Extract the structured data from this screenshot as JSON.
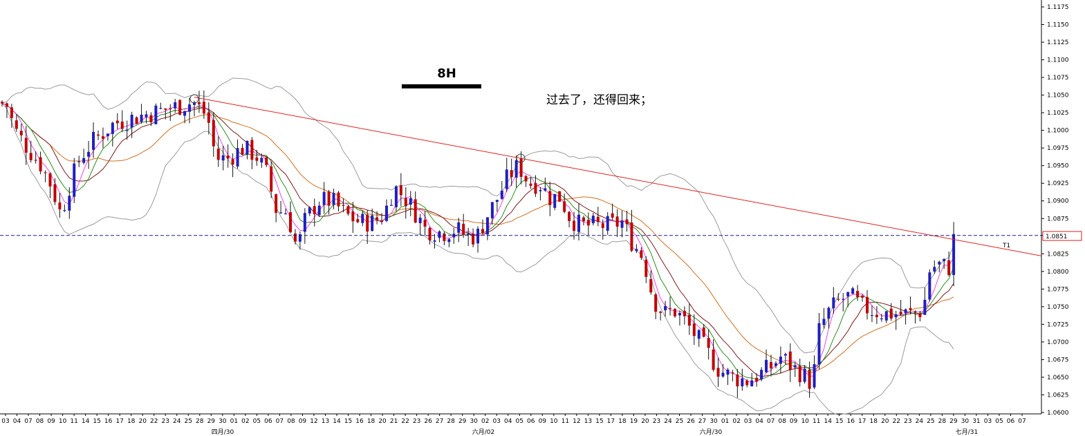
{
  "chart_data": {
    "type": "candlestick",
    "instrument_timeframe": "8H",
    "annotation": "过去了，还得回来；",
    "trendline_label": "T1",
    "current_price_label": "1.0851",
    "ylim": [
      1.06,
      1.1175
    ],
    "y_ticks": [
      "1.1175",
      "1.1150",
      "1.1125",
      "1.1100",
      "1.1075",
      "1.1050",
      "1.1025",
      "1.1000",
      "1.0975",
      "1.0950",
      "1.0925",
      "1.0900",
      "1.0875",
      "1.0851",
      "1.0825",
      "1.0800",
      "1.0775",
      "1.0750",
      "1.0725",
      "1.0700",
      "1.0675",
      "1.0650",
      "1.0625",
      "1.0600"
    ],
    "x_date_labels": [
      "03",
      "04",
      "07",
      "08",
      "09",
      "10",
      "11",
      "14",
      "15",
      "16",
      "17",
      "18",
      "20",
      "22",
      "23",
      "24",
      "25",
      "28",
      "29",
      "30",
      "01",
      "02",
      "05",
      "06",
      "07",
      "08",
      "09",
      "12",
      "13",
      "14",
      "15",
      "16",
      "18",
      "20",
      "21",
      "22",
      "23",
      "26",
      "27",
      "28",
      "29",
      "30",
      "02",
      "03",
      "04",
      "05",
      "06",
      "09",
      "10",
      "11",
      "12",
      "13",
      "15",
      "17",
      "18",
      "19",
      "20",
      "23",
      "24",
      "25",
      "26",
      "27",
      "30",
      "01",
      "02",
      "03",
      "04",
      "07",
      "08",
      "09",
      "10",
      "11",
      "14",
      "15",
      "16",
      "17",
      "18",
      "20",
      "22",
      "23",
      "24",
      "25",
      "28",
      "29",
      "30",
      "31",
      "03",
      "05",
      "06",
      "07"
    ],
    "x_month_labels": [
      "四月/30",
      "六月/02",
      "六月/30",
      "七月/31"
    ],
    "trendline": [
      [
        1.1047,
        1.0822
      ]
    ],
    "horizontal_line": 1.0851,
    "colors": {
      "bull": "#1f1fbf",
      "bear": "#c00000",
      "trendline": "#dd2222",
      "hline": "#1a1a80",
      "bollinger": "#9a9a9a",
      "ma_fast": "#ee44dd",
      "ma_mid": "#2e8b22",
      "ma_slow": "#7b1a1a",
      "ma_long": "#d07020"
    },
    "close_path": [
      [
        0,
        1.104
      ],
      [
        10,
        1.1035
      ],
      [
        22,
        1.1
      ],
      [
        40,
        1.0975
      ],
      [
        60,
        1.095
      ],
      [
        75,
        1.092
      ],
      [
        88,
        1.088
      ],
      [
        100,
        1.092
      ],
      [
        115,
        1.096
      ],
      [
        135,
        1.0985
      ],
      [
        165,
        1.101
      ],
      [
        200,
        1.102
      ],
      [
        240,
        1.103
      ],
      [
        280,
        1.104
      ],
      [
        300,
        1.102
      ],
      [
        312,
        1.096
      ],
      [
        330,
        1.096
      ],
      [
        350,
        1.0975
      ],
      [
        370,
        1.0965
      ],
      [
        385,
        1.094
      ],
      [
        400,
        1.0885
      ],
      [
        415,
        1.0885
      ],
      [
        430,
        1.083
      ],
      [
        440,
        1.087
      ],
      [
        460,
        1.09
      ],
      [
        480,
        1.09
      ],
      [
        500,
        1.088
      ],
      [
        520,
        1.087
      ],
      [
        540,
        1.087
      ],
      [
        555,
        1.088
      ],
      [
        570,
        1.092
      ],
      [
        585,
        1.0905
      ],
      [
        600,
        1.0885
      ],
      [
        615,
        1.086
      ],
      [
        640,
        1.0855
      ],
      [
        660,
        1.086
      ],
      [
        675,
        1.085
      ],
      [
        690,
        1.085
      ],
      [
        705,
        1.088
      ],
      [
        720,
        1.0905
      ],
      [
        735,
        1.0935
      ],
      [
        750,
        1.095
      ],
      [
        765,
        1.0925
      ],
      [
        780,
        1.0925
      ],
      [
        795,
        1.0905
      ],
      [
        810,
        1.0905
      ],
      [
        825,
        1.0875
      ],
      [
        840,
        1.0865
      ],
      [
        860,
        1.0865
      ],
      [
        880,
        1.0865
      ],
      [
        900,
        1.087
      ],
      [
        915,
        1.084
      ],
      [
        930,
        1.082
      ],
      [
        945,
        1.076
      ],
      [
        960,
        1.074
      ],
      [
        975,
        1.0745
      ],
      [
        990,
        1.073
      ],
      [
        1005,
        1.071
      ],
      [
        1020,
        1.069
      ],
      [
        1040,
        1.066
      ],
      [
        1060,
        1.065
      ],
      [
        1080,
        1.0645
      ],
      [
        1100,
        1.0655
      ],
      [
        1115,
        1.0665
      ],
      [
        1130,
        1.068
      ],
      [
        1145,
        1.0665
      ],
      [
        1160,
        1.0655
      ],
      [
        1175,
        1.064
      ],
      [
        1185,
        1.072
      ],
      [
        1200,
        1.0745
      ],
      [
        1215,
        1.076
      ],
      [
        1230,
        1.0765
      ],
      [
        1245,
        1.075
      ],
      [
        1260,
        1.0745
      ],
      [
        1280,
        1.074
      ],
      [
        1300,
        1.074
      ],
      [
        1320,
        1.074
      ],
      [
        1335,
        1.0745
      ],
      [
        1345,
        1.0805
      ],
      [
        1360,
        1.081
      ],
      [
        1372,
        1.0805
      ],
      [
        1380,
        1.0851
      ]
    ]
  }
}
